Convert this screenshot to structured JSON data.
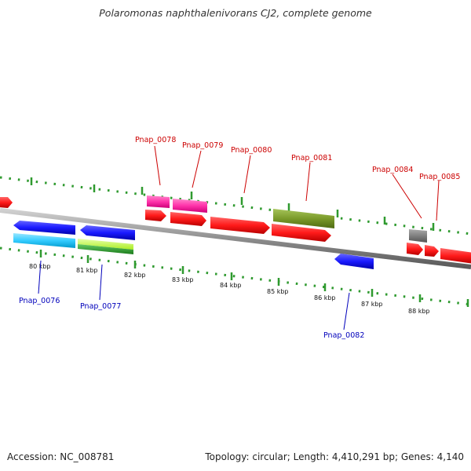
{
  "header": {
    "title": "Polaromonas naphthalenivorans CJ2, complete genome"
  },
  "footer": {
    "accession": "Accession: NC_008781",
    "summary": "Topology: circular; Length: 4,410,291 bp; Genes: 4,140"
  },
  "colors": {
    "backbone": "#8e8e8e",
    "tick_dots": "#2f9a2f",
    "label_red": "#cc0000",
    "label_blue": "#0000bb",
    "red_gene": "#ff1a1a",
    "blue_gene": "#1a1aff",
    "cyan_gene": "#33ccff",
    "magenta_gene": "#ff33aa",
    "olive_gene": "#7a9a2a",
    "lime_gene": "#b8ff33",
    "green_gene": "#33aa33",
    "gray_gene": "#808080"
  },
  "scale": {
    "tick_labels": [
      "80 kbp",
      "81 kbp",
      "82 kbp",
      "83 kbp",
      "84 kbp",
      "85 kbp",
      "86 kbp",
      "87 kbp",
      "88 kbp"
    ]
  },
  "gene_labels": {
    "top": [
      "Pnap_0078",
      "Pnap_0079",
      "Pnap_0080",
      "Pnap_0081",
      "Pnap_0084",
      "Pnap_0085"
    ],
    "bottom": [
      "Pnap_0076",
      "Pnap_0077",
      "Pnap_0082"
    ]
  }
}
